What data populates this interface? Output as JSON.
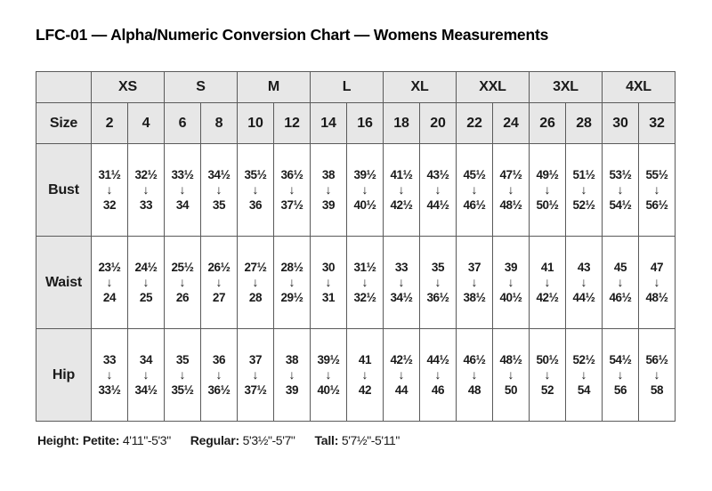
{
  "title": "LFC-01 — Alpha/Numeric Conversion Chart — Womens Measurements",
  "table": {
    "corner_label": "",
    "size_row_label": "Size",
    "alpha_sizes": [
      "XS",
      "S",
      "M",
      "L",
      "XL",
      "XXL",
      "3XL",
      "4XL"
    ],
    "numeric_sizes": [
      "2",
      "4",
      "6",
      "8",
      "10",
      "12",
      "14",
      "16",
      "18",
      "20",
      "22",
      "24",
      "26",
      "28",
      "30",
      "32"
    ],
    "arrow": "↓",
    "measurement_rows": [
      {
        "label": "Bust",
        "ranges": [
          [
            "31½",
            "32"
          ],
          [
            "32½",
            "33"
          ],
          [
            "33½",
            "34"
          ],
          [
            "34½",
            "35"
          ],
          [
            "35½",
            "36"
          ],
          [
            "36½",
            "37½"
          ],
          [
            "38",
            "39"
          ],
          [
            "39½",
            "40½"
          ],
          [
            "41½",
            "42½"
          ],
          [
            "43½",
            "44½"
          ],
          [
            "45½",
            "46½"
          ],
          [
            "47½",
            "48½"
          ],
          [
            "49½",
            "50½"
          ],
          [
            "51½",
            "52½"
          ],
          [
            "53½",
            "54½"
          ],
          [
            "55½",
            "56½"
          ]
        ]
      },
      {
        "label": "Waist",
        "ranges": [
          [
            "23½",
            "24"
          ],
          [
            "24½",
            "25"
          ],
          [
            "25½",
            "26"
          ],
          [
            "26½",
            "27"
          ],
          [
            "27½",
            "28"
          ],
          [
            "28½",
            "29½"
          ],
          [
            "30",
            "31"
          ],
          [
            "31½",
            "32½"
          ],
          [
            "33",
            "34½"
          ],
          [
            "35",
            "36½"
          ],
          [
            "37",
            "38½"
          ],
          [
            "39",
            "40½"
          ],
          [
            "41",
            "42½"
          ],
          [
            "43",
            "44½"
          ],
          [
            "45",
            "46½"
          ],
          [
            "47",
            "48½"
          ]
        ]
      },
      {
        "label": "Hip",
        "ranges": [
          [
            "33",
            "33½"
          ],
          [
            "34",
            "34½"
          ],
          [
            "35",
            "35½"
          ],
          [
            "36",
            "36½"
          ],
          [
            "37",
            "37½"
          ],
          [
            "38",
            "39"
          ],
          [
            "39½",
            "40½"
          ],
          [
            "41",
            "42"
          ],
          [
            "42½",
            "44"
          ],
          [
            "44½",
            "46"
          ],
          [
            "46½",
            "48"
          ],
          [
            "48½",
            "50"
          ],
          [
            "50½",
            "52"
          ],
          [
            "52½",
            "54"
          ],
          [
            "54½",
            "56"
          ],
          [
            "56½",
            "58"
          ]
        ]
      }
    ]
  },
  "footer": {
    "height_label": "Height:",
    "entries": [
      {
        "label": "Petite:",
        "value": "4'11\"-5'3\""
      },
      {
        "label": "Regular:",
        "value": "5'3½\"-5'7\""
      },
      {
        "label": "Tall:",
        "value": "5'7½\"-5'11\""
      }
    ]
  },
  "colors": {
    "page_bg": "#ffffff",
    "header_bg": "#e7e7e7",
    "border": "#5a5a5a",
    "text": "#111111"
  }
}
